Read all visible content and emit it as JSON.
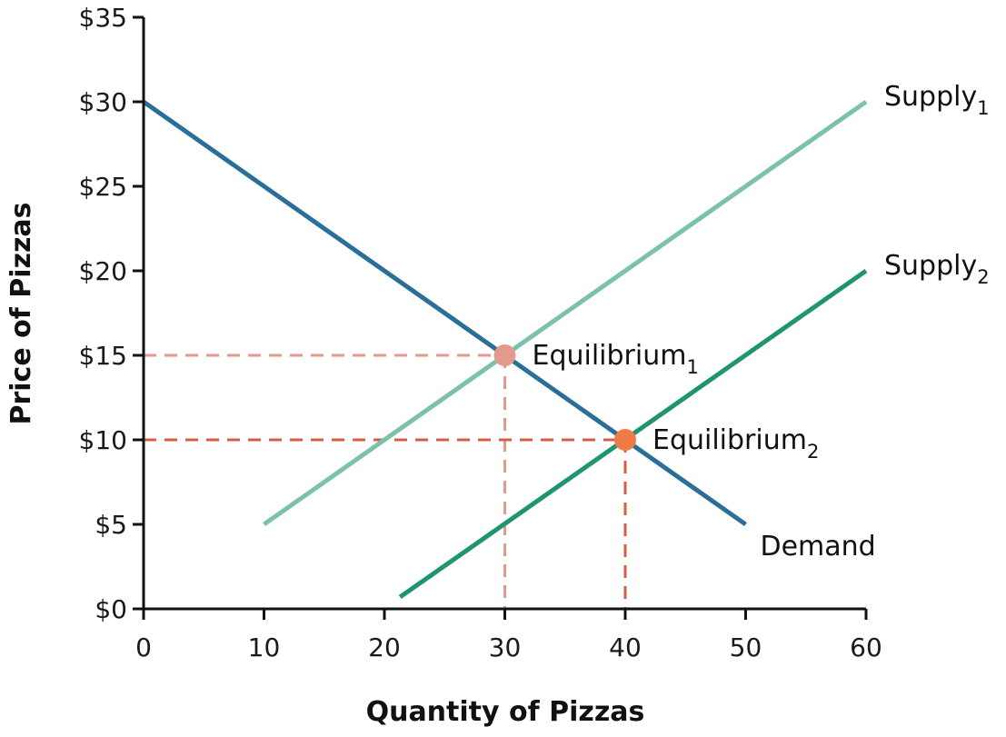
{
  "chart_data": {
    "type": "line",
    "title": "",
    "xlabel": "Quantity of Pizzas",
    "ylabel": "Price of Pizzas",
    "xlim": [
      0,
      60
    ],
    "ylim": [
      0,
      35
    ],
    "x_ticks": [
      0,
      10,
      20,
      30,
      40,
      50,
      60
    ],
    "y_ticks": [
      0,
      5,
      10,
      15,
      20,
      25,
      30,
      35
    ],
    "x_tick_labels": [
      "0",
      "10",
      "20",
      "30",
      "40",
      "50",
      "60"
    ],
    "y_tick_labels": [
      "$0",
      "$5",
      "$10",
      "$15",
      "$20",
      "$25",
      "$30",
      "$35"
    ],
    "grid": false,
    "legend": "none",
    "series": [
      {
        "name": "Demand",
        "label_main": "Demand",
        "label_sub": "",
        "color": "#2a6f97",
        "points": [
          [
            0,
            30
          ],
          [
            50,
            5
          ]
        ]
      },
      {
        "name": "Supply1",
        "label_main": "Supply",
        "label_sub": "1",
        "color": "#7cc2a8",
        "points": [
          [
            10,
            5
          ],
          [
            60,
            30
          ]
        ]
      },
      {
        "name": "Supply2",
        "label_main": "Supply",
        "label_sub": "2",
        "color": "#1f9470",
        "points": [
          [
            21.3,
            0.7
          ],
          [
            60,
            20
          ]
        ]
      }
    ],
    "equilibria": [
      {
        "name": "Equilibrium1",
        "label_main": "Equilibrium",
        "label_sub": "1",
        "x": 30,
        "y": 15,
        "color": "#e39a8c"
      },
      {
        "name": "Equilibrium2",
        "label_main": "Equilibrium",
        "label_sub": "2",
        "x": 40,
        "y": 10,
        "color": "#ef7a45"
      }
    ],
    "guide_colors": {
      "Equilibrium1": "#e39a8c",
      "Equilibrium2": "#d65d45"
    }
  }
}
